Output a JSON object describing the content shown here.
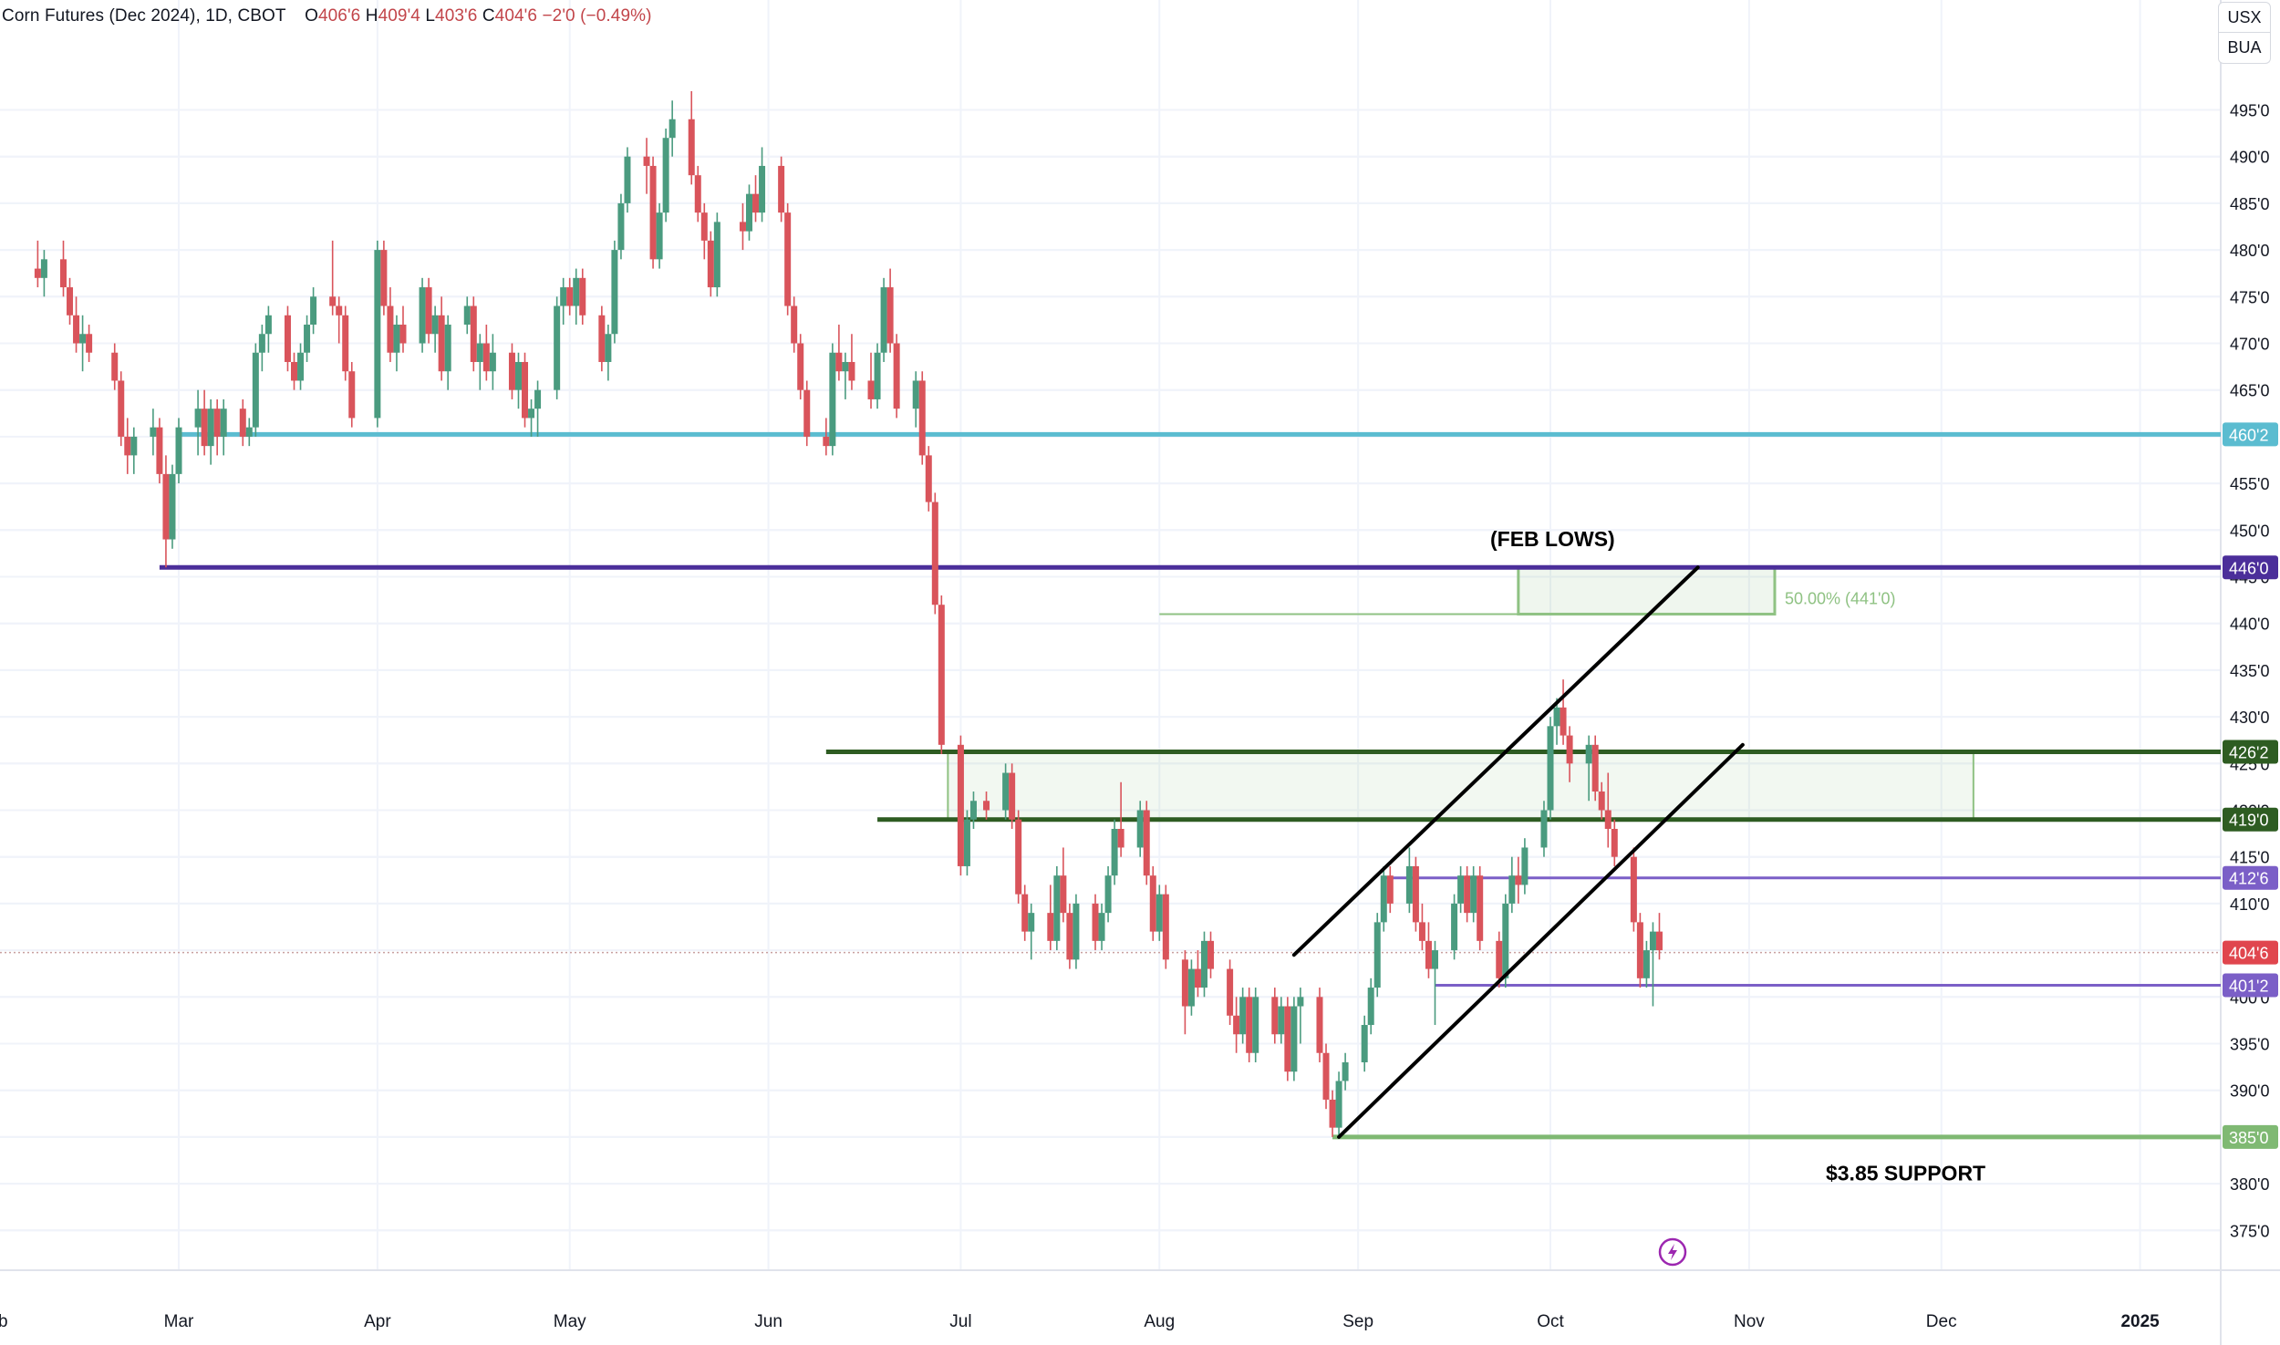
{
  "header": {
    "symbol": "Corn Futures (Dec 2024), 1D, CBOT",
    "open_label": "O",
    "open": "406'6",
    "high_label": "H",
    "high": "409'4",
    "low_label": "L",
    "low": "403'6",
    "close_label": "C",
    "close": "404'6",
    "change": "−2'0 (−0.49%)"
  },
  "currency": {
    "unit": "USX",
    "exchange": "BUA"
  },
  "colors": {
    "up": "#4a9b7f",
    "down": "#d9545b",
    "support_460": "#5bbcd0",
    "feb_lows": "#4b2e9a",
    "resistance_green": "#2e5c22",
    "purple_lines": "#7b5fc7",
    "support_385": "#7fb973",
    "fib_box": "#8fc283",
    "grid": "#f0f3fa",
    "axis_text": "#131722"
  },
  "chart_data": {
    "type": "candlestick",
    "title": "Corn Futures (Dec 2024), 1D, CBOT",
    "y_axis_unit": "cents/bu",
    "ylim": [
      371,
      501
    ],
    "y_ticks": [
      "375'0",
      "380'0",
      "385'0",
      "390'0",
      "395'0",
      "400'0",
      "410'0",
      "415'0",
      "420'0",
      "425'0",
      "430'0",
      "435'0",
      "440'0",
      "445'0",
      "450'0",
      "455'0",
      "465'0",
      "470'0",
      "475'0",
      "480'0",
      "485'0",
      "490'0",
      "495'0"
    ],
    "x_ticks": [
      {
        "label": "Feb",
        "date": "2024-02-01"
      },
      {
        "label": "Mar",
        "date": "2024-03-01"
      },
      {
        "label": "Apr",
        "date": "2024-04-01"
      },
      {
        "label": "May",
        "date": "2024-05-01"
      },
      {
        "label": "Jun",
        "date": "2024-06-01"
      },
      {
        "label": "Jul",
        "date": "2024-07-01"
      },
      {
        "label": "Aug",
        "date": "2024-08-01"
      },
      {
        "label": "Sep",
        "date": "2024-09-01"
      },
      {
        "label": "Oct",
        "date": "2024-10-01"
      },
      {
        "label": "Nov",
        "date": "2024-11-01"
      },
      {
        "label": "Dec",
        "date": "2024-12-01"
      },
      {
        "label": "2025",
        "date": "2025-01-01"
      }
    ],
    "x_range": [
      "2024-02-08",
      "2025-01-20"
    ],
    "candles": [
      [
        "2024-02-08",
        478,
        481,
        476,
        477
      ],
      [
        "2024-02-09",
        477,
        480,
        475,
        479
      ],
      [
        "2024-02-12",
        479,
        481,
        475,
        476
      ],
      [
        "2024-02-13",
        476,
        477,
        472,
        473
      ],
      [
        "2024-02-14",
        473,
        475,
        469,
        470
      ],
      [
        "2024-02-15",
        470,
        473,
        467,
        471
      ],
      [
        "2024-02-16",
        471,
        472,
        468,
        469
      ],
      [
        "2024-02-20",
        469,
        470,
        465,
        466
      ],
      [
        "2024-02-21",
        466,
        467,
        459,
        460
      ],
      [
        "2024-02-22",
        460,
        462,
        456,
        458
      ],
      [
        "2024-02-23",
        458,
        461,
        456,
        460
      ],
      [
        "2024-02-26",
        460,
        463,
        458,
        461
      ],
      [
        "2024-02-27",
        461,
        462,
        455,
        456
      ],
      [
        "2024-02-28",
        456,
        458,
        446,
        449
      ],
      [
        "2024-02-29",
        449,
        457,
        448,
        456
      ],
      [
        "2024-03-01",
        456,
        462,
        455,
        461
      ],
      [
        "2024-03-04",
        461,
        465,
        458,
        463
      ],
      [
        "2024-03-05",
        463,
        465,
        458,
        459
      ],
      [
        "2024-03-06",
        459,
        464,
        457,
        463
      ],
      [
        "2024-03-07",
        463,
        464,
        458,
        460
      ],
      [
        "2024-03-08",
        460,
        464,
        458,
        463
      ],
      [
        "2024-03-11",
        463,
        464,
        459,
        460
      ],
      [
        "2024-03-12",
        460,
        462,
        459,
        461
      ],
      [
        "2024-03-13",
        461,
        470,
        460,
        469
      ],
      [
        "2024-03-14",
        469,
        472,
        467,
        471
      ],
      [
        "2024-03-15",
        471,
        474,
        469,
        473
      ],
      [
        "2024-03-18",
        473,
        474,
        467,
        468
      ],
      [
        "2024-03-19",
        468,
        469,
        465,
        466
      ],
      [
        "2024-03-20",
        466,
        470,
        465,
        469
      ],
      [
        "2024-03-21",
        469,
        473,
        468,
        472
      ],
      [
        "2024-03-22",
        472,
        476,
        471,
        475
      ],
      [
        "2024-03-25",
        475,
        481,
        473,
        474
      ],
      [
        "2024-03-26",
        474,
        475,
        470,
        473
      ],
      [
        "2024-03-27",
        473,
        474,
        466,
        467
      ],
      [
        "2024-03-28",
        467,
        468,
        461,
        462
      ],
      [
        "2024-04-01",
        462,
        481,
        461,
        480
      ],
      [
        "2024-04-02",
        480,
        481,
        473,
        474
      ],
      [
        "2024-04-03",
        474,
        476,
        468,
        469
      ],
      [
        "2024-04-04",
        469,
        473,
        467,
        472
      ],
      [
        "2024-04-05",
        472,
        474,
        469,
        470
      ],
      [
        "2024-04-08",
        470,
        477,
        469,
        476
      ],
      [
        "2024-04-09",
        476,
        477,
        470,
        471
      ],
      [
        "2024-04-10",
        471,
        474,
        469,
        473
      ],
      [
        "2024-04-11",
        473,
        475,
        466,
        467
      ],
      [
        "2024-04-12",
        467,
        473,
        465,
        472
      ],
      [
        "2024-04-15",
        472,
        475,
        471,
        474
      ],
      [
        "2024-04-16",
        474,
        475,
        467,
        468
      ],
      [
        "2024-04-17",
        468,
        471,
        465,
        470
      ],
      [
        "2024-04-18",
        470,
        472,
        466,
        467
      ],
      [
        "2024-04-19",
        467,
        471,
        465,
        469
      ],
      [
        "2024-04-22",
        469,
        470,
        464,
        465
      ],
      [
        "2024-04-23",
        465,
        469,
        463,
        468
      ],
      [
        "2024-04-24",
        468,
        469,
        461,
        462
      ],
      [
        "2024-04-25",
        462,
        464,
        460,
        463
      ],
      [
        "2024-04-26",
        463,
        466,
        460,
        465
      ],
      [
        "2024-04-29",
        465,
        475,
        464,
        474
      ],
      [
        "2024-04-30",
        474,
        477,
        472,
        476
      ],
      [
        "2024-05-01",
        476,
        477,
        473,
        474
      ],
      [
        "2024-05-02",
        474,
        478,
        472,
        477
      ],
      [
        "2024-05-03",
        477,
        478,
        472,
        473
      ],
      [
        "2024-05-06",
        473,
        474,
        467,
        468
      ],
      [
        "2024-05-07",
        468,
        472,
        466,
        471
      ],
      [
        "2024-05-08",
        471,
        481,
        470,
        480
      ],
      [
        "2024-05-09",
        480,
        486,
        479,
        485
      ],
      [
        "2024-05-10",
        485,
        491,
        484,
        490
      ],
      [
        "2024-05-13",
        490,
        492,
        486,
        489
      ],
      [
        "2024-05-14",
        489,
        490,
        478,
        479
      ],
      [
        "2024-05-15",
        479,
        485,
        478,
        484
      ],
      [
        "2024-05-16",
        484,
        493,
        483,
        492
      ],
      [
        "2024-05-17",
        492,
        496,
        490,
        494
      ],
      [
        "2024-05-20",
        494,
        497,
        487,
        488
      ],
      [
        "2024-05-21",
        488,
        489,
        483,
        484
      ],
      [
        "2024-05-22",
        484,
        485,
        479,
        481
      ],
      [
        "2024-05-23",
        481,
        482,
        475,
        476
      ],
      [
        "2024-05-24",
        476,
        484,
        475,
        483
      ],
      [
        "2024-05-28",
        483,
        485,
        480,
        482
      ],
      [
        "2024-05-29",
        482,
        487,
        481,
        486
      ],
      [
        "2024-05-30",
        486,
        488,
        483,
        484
      ],
      [
        "2024-05-31",
        484,
        491,
        483,
        489
      ],
      [
        "2024-06-03",
        489,
        490,
        483,
        484
      ],
      [
        "2024-06-04",
        484,
        485,
        473,
        474
      ],
      [
        "2024-06-05",
        474,
        475,
        469,
        470
      ],
      [
        "2024-06-06",
        470,
        471,
        464,
        465
      ],
      [
        "2024-06-07",
        465,
        466,
        459,
        460
      ],
      [
        "2024-06-10",
        460,
        462,
        458,
        459
      ],
      [
        "2024-06-11",
        459,
        470,
        458,
        469
      ],
      [
        "2024-06-12",
        469,
        472,
        466,
        467
      ],
      [
        "2024-06-13",
        467,
        469,
        464,
        468
      ],
      [
        "2024-06-14",
        468,
        471,
        465,
        466
      ],
      [
        "2024-06-17",
        466,
        469,
        463,
        464
      ],
      [
        "2024-06-18",
        464,
        470,
        463,
        469
      ],
      [
        "2024-06-19",
        469,
        477,
        468,
        476
      ],
      [
        "2024-06-20",
        476,
        478,
        469,
        470
      ],
      [
        "2024-06-21",
        470,
        471,
        462,
        463
      ],
      [
        "2024-06-24",
        463,
        467,
        461,
        466
      ],
      [
        "2024-06-25",
        466,
        467,
        457,
        458
      ],
      [
        "2024-06-26",
        458,
        459,
        452,
        453
      ],
      [
        "2024-06-27",
        453,
        454,
        441,
        442
      ],
      [
        "2024-06-28",
        442,
        443,
        426,
        427
      ],
      [
        "2024-07-01",
        427,
        428,
        413,
        414
      ],
      [
        "2024-07-02",
        414,
        420,
        413,
        419
      ],
      [
        "2024-07-03",
        419,
        422,
        418,
        421
      ],
      [
        "2024-07-05",
        421,
        422,
        419,
        420
      ],
      [
        "2024-07-08",
        420,
        425,
        419,
        424
      ],
      [
        "2024-07-09",
        424,
        425,
        418,
        419
      ],
      [
        "2024-07-10",
        419,
        420,
        410,
        411
      ],
      [
        "2024-07-11",
        411,
        412,
        406,
        407
      ],
      [
        "2024-07-12",
        407,
        410,
        404,
        409
      ],
      [
        "2024-07-15",
        409,
        412,
        405,
        406
      ],
      [
        "2024-07-16",
        406,
        414,
        405,
        413
      ],
      [
        "2024-07-17",
        413,
        416,
        408,
        409
      ],
      [
        "2024-07-18",
        409,
        410,
        403,
        404
      ],
      [
        "2024-07-19",
        404,
        411,
        403,
        410
      ],
      [
        "2024-07-22",
        410,
        411,
        405,
        406
      ],
      [
        "2024-07-23",
        406,
        410,
        405,
        409
      ],
      [
        "2024-07-24",
        409,
        414,
        408,
        413
      ],
      [
        "2024-07-25",
        413,
        419,
        412,
        418
      ],
      [
        "2024-07-26",
        418,
        423,
        415,
        416
      ],
      [
        "2024-07-29",
        416,
        421,
        415,
        420
      ],
      [
        "2024-07-30",
        420,
        421,
        412,
        413
      ],
      [
        "2024-07-31",
        413,
        414,
        406,
        407
      ],
      [
        "2024-08-01",
        407,
        412,
        406,
        411
      ],
      [
        "2024-08-02",
        411,
        412,
        403,
        404
      ],
      [
        "2024-08-05",
        404,
        405,
        396,
        399
      ],
      [
        "2024-08-06",
        399,
        404,
        398,
        403
      ],
      [
        "2024-08-07",
        403,
        405,
        400,
        401
      ],
      [
        "2024-08-08",
        401,
        407,
        400,
        406
      ],
      [
        "2024-08-09",
        406,
        407,
        402,
        403
      ],
      [
        "2024-08-12",
        403,
        404,
        397,
        398
      ],
      [
        "2024-08-13",
        398,
        400,
        394,
        396
      ],
      [
        "2024-08-14",
        396,
        401,
        395,
        400
      ],
      [
        "2024-08-15",
        400,
        401,
        393,
        394
      ],
      [
        "2024-08-16",
        394,
        401,
        393,
        400
      ],
      [
        "2024-08-19",
        400,
        401,
        395,
        396
      ],
      [
        "2024-08-20",
        396,
        400,
        395,
        399
      ],
      [
        "2024-08-21",
        399,
        400,
        391,
        392
      ],
      [
        "2024-08-22",
        392,
        400,
        391,
        399
      ],
      [
        "2024-08-23",
        399,
        401,
        395,
        400
      ],
      [
        "2024-08-26",
        400,
        401,
        393,
        394
      ],
      [
        "2024-08-27",
        394,
        395,
        388,
        389
      ],
      [
        "2024-08-28",
        389,
        390,
        385,
        386
      ],
      [
        "2024-08-29",
        386,
        392,
        385,
        391
      ],
      [
        "2024-08-30",
        391,
        394,
        390,
        393
      ],
      [
        "2024-09-02",
        393,
        398,
        392,
        397
      ],
      [
        "2024-09-03",
        397,
        402,
        396,
        401
      ],
      [
        "2024-09-04",
        401,
        409,
        400,
        408
      ],
      [
        "2024-09-05",
        408,
        414,
        407,
        413
      ],
      [
        "2024-09-06",
        413,
        414,
        409,
        410
      ],
      [
        "2024-09-09",
        410,
        416,
        409,
        414
      ],
      [
        "2024-09-10",
        414,
        415,
        407,
        408
      ],
      [
        "2024-09-11",
        408,
        410,
        405,
        406
      ],
      [
        "2024-09-12",
        406,
        408,
        402,
        403
      ],
      [
        "2024-09-13",
        403,
        406,
        397,
        405
      ],
      [
        "2024-09-16",
        405,
        411,
        404,
        410
      ],
      [
        "2024-09-17",
        410,
        414,
        409,
        413
      ],
      [
        "2024-09-18",
        413,
        414,
        408,
        409
      ],
      [
        "2024-09-19",
        409,
        414,
        408,
        413
      ],
      [
        "2024-09-20",
        413,
        414,
        405,
        406
      ],
      [
        "2024-09-23",
        406,
        407,
        401,
        402
      ],
      [
        "2024-09-24",
        402,
        411,
        401,
        410
      ],
      [
        "2024-09-25",
        410,
        415,
        409,
        413
      ],
      [
        "2024-09-26",
        413,
        415,
        410,
        412
      ],
      [
        "2024-09-27",
        412,
        417,
        411,
        416
      ],
      [
        "2024-09-30",
        416,
        421,
        415,
        420
      ],
      [
        "2024-10-01",
        420,
        430,
        419,
        429
      ],
      [
        "2024-10-02",
        429,
        432,
        427,
        431
      ],
      [
        "2024-10-03",
        431,
        434,
        427,
        428
      ],
      [
        "2024-10-04",
        428,
        429,
        423,
        425
      ],
      [
        "2024-10-07",
        425,
        428,
        421,
        427
      ],
      [
        "2024-10-08",
        427,
        428,
        421,
        422
      ],
      [
        "2024-10-09",
        422,
        423,
        419,
        420
      ],
      [
        "2024-10-10",
        420,
        424,
        416,
        418
      ],
      [
        "2024-10-11",
        418,
        419,
        414,
        415
      ],
      [
        "2024-10-14",
        415,
        416,
        407,
        408
      ],
      [
        "2024-10-15",
        408,
        409,
        401,
        402
      ],
      [
        "2024-10-16",
        402,
        406,
        401,
        405
      ],
      [
        "2024-10-17",
        405,
        408,
        399,
        407
      ],
      [
        "2024-10-18",
        407,
        409,
        404,
        405
      ]
    ],
    "levels": [
      {
        "price": 460.25,
        "label": "460'2"
      },
      {
        "price": 446.0,
        "label": "446'0"
      },
      {
        "price": 426.25,
        "label": "426'2"
      },
      {
        "price": 419.0,
        "label": "419'0"
      },
      {
        "price": 412.75,
        "label": "412'6"
      },
      {
        "price": 404.75,
        "label": "404'6"
      },
      {
        "price": 401.25,
        "label": "401'2"
      },
      {
        "price": 385.0,
        "label": "385'0"
      }
    ],
    "annotations": [
      {
        "text": "(FEB LOWS)",
        "date": "2024-10-01",
        "price": 447.5
      },
      {
        "text": "$3.85 SUPPORT",
        "date": "2024-11-05",
        "price": 383.0
      },
      {
        "text": "50.00% (441'0)",
        "date": "2024-11-08",
        "price": 443.0
      }
    ],
    "fib_box": {
      "date_start": "2024-09-26",
      "date_end": "2024-11-05",
      "price_top": 446.0,
      "price_bottom": 441.0,
      "guide_start": "2024-08-01"
    },
    "resistance_zone": {
      "date_start": "2024-06-29",
      "date_end": "2024-12-06",
      "price_top": 426.25,
      "price_bottom": 419.0
    },
    "trendlines": [
      {
        "from": [
          "2024-08-22",
          404.5
        ],
        "to": [
          "2024-10-24",
          446.0
        ]
      },
      {
        "from": [
          "2024-08-29",
          385.0
        ],
        "to": [
          "2024-10-31",
          427.0
        ]
      }
    ]
  }
}
